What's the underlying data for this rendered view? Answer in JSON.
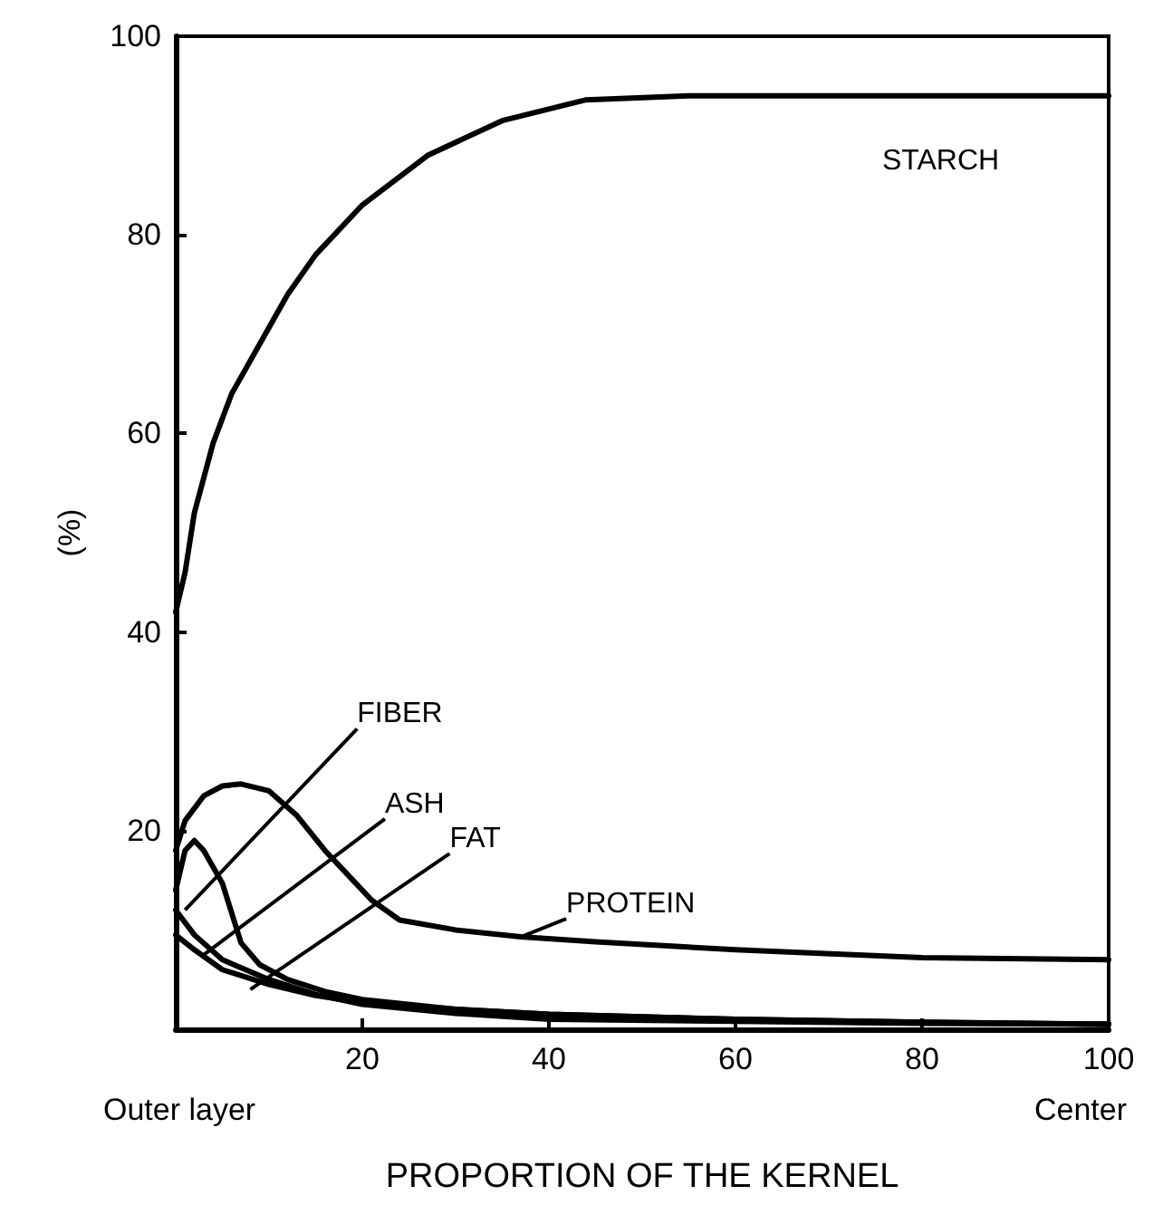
{
  "chart_data": {
    "type": "line",
    "xlabel": "PROPORTION OF THE KERNEL",
    "ylabel": "(%)",
    "xlim": [
      0,
      100
    ],
    "ylim": [
      0,
      100
    ],
    "xticks": [
      20,
      40,
      60,
      80,
      100
    ],
    "yticks": [
      20,
      40,
      60,
      80,
      100
    ],
    "grid": false,
    "marker": "none",
    "line_style": "solid",
    "series": [
      {
        "color": "#000000",
        "x": [
          0,
          1,
          2,
          4,
          6,
          9,
          12,
          15,
          20,
          27,
          35,
          44,
          55,
          64,
          80,
          100
        ],
        "values": [
          42,
          46,
          52,
          59,
          64,
          69,
          74,
          78,
          83,
          88,
          91.5,
          93.6,
          94,
          94,
          94,
          94
        ]
      },
      {
        "color": "#000000",
        "x": [
          0,
          1,
          3,
          5,
          7,
          10,
          13,
          16,
          18,
          21,
          24,
          30,
          37,
          45,
          60,
          80,
          100
        ],
        "values": [
          18,
          21,
          23.5,
          24.5,
          24.7,
          24,
          21.5,
          18,
          16,
          13,
          11,
          10,
          9.3,
          8.8,
          8,
          7.2,
          7
        ]
      },
      {
        "color": "#000000",
        "x": [
          0,
          1,
          2,
          3,
          5,
          7,
          9,
          12,
          16,
          20,
          30,
          40,
          60,
          80,
          100
        ],
        "values": [
          14,
          18,
          19,
          18,
          14.7,
          8.7,
          6.5,
          5,
          3.8,
          3,
          2,
          1.5,
          1,
          0.7,
          0.5
        ]
      },
      {
        "color": "#000000",
        "x": [
          0,
          2,
          5,
          10,
          15,
          20,
          30,
          40,
          60,
          80,
          100
        ],
        "values": [
          12,
          9.5,
          7,
          5,
          3.5,
          2.5,
          1.6,
          1,
          0.8,
          0.6,
          0.5
        ]
      },
      {
        "color": "#000000",
        "x": [
          0,
          2,
          5,
          10,
          15,
          20,
          30,
          40,
          60,
          80,
          100
        ],
        "values": [
          9.5,
          8,
          6,
          4.5,
          3.4,
          2.7,
          2,
          1.5,
          1,
          0.7,
          0.5
        ]
      }
    ],
    "annotations": [
      {
        "text": "STARCH",
        "x": 82,
        "y": 94
      },
      {
        "text": "FIBER",
        "x": 1,
        "y": 12
      },
      {
        "text": "ASH",
        "x": 3,
        "y": 7.5
      },
      {
        "text": "FAT",
        "x": 8,
        "y": 4
      },
      {
        "text": "PROTEIN",
        "x": 37,
        "y": 9.3
      },
      "Outer layer",
      "Center"
    ]
  }
}
